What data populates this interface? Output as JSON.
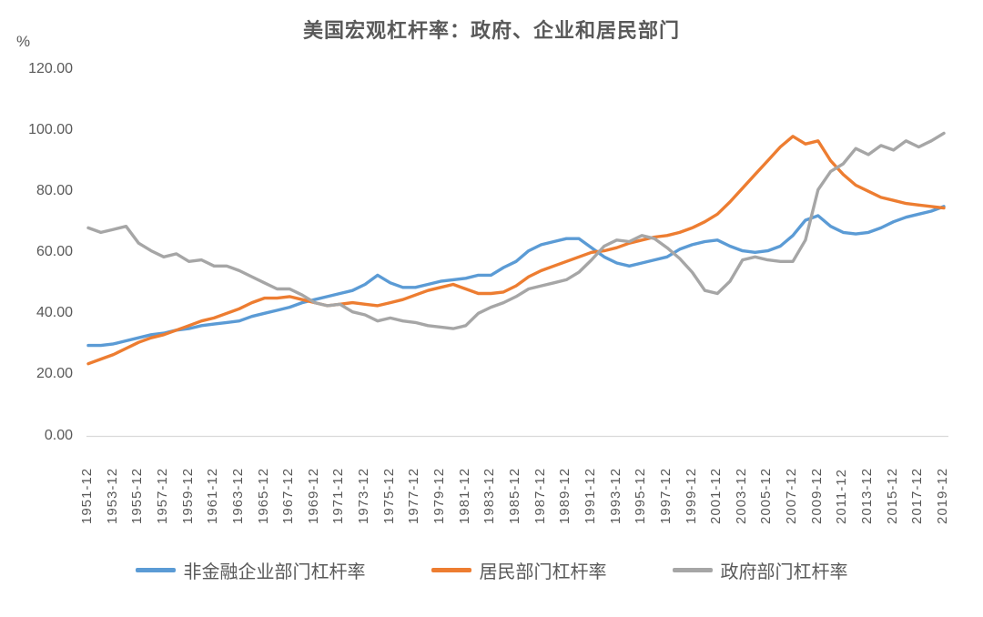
{
  "chart_data": {
    "type": "line",
    "title": "美国宏观杠杆率：政府、企业和居民部门",
    "unit_label": "%",
    "xlabel": "",
    "ylabel": "",
    "ylim": [
      0,
      120
    ],
    "grid": false,
    "legend_position": "bottom",
    "axis_color": "#D9D9D9",
    "text_color": "#595959",
    "y_ticks": [
      {
        "v": 120,
        "label": "120.00"
      },
      {
        "v": 100,
        "label": "100.00"
      },
      {
        "v": 80,
        "label": "80.00"
      },
      {
        "v": 60,
        "label": "60.00"
      },
      {
        "v": 40,
        "label": "40.00"
      },
      {
        "v": 20,
        "label": "20.00"
      },
      {
        "v": 0,
        "label": "0.00"
      }
    ],
    "x_tick_labels": [
      "1951-12",
      "1953-12",
      "1955-12",
      "1957-12",
      "1959-12",
      "1961-12",
      "1963-12",
      "1965-12",
      "1967-12",
      "1969-12",
      "1971-12",
      "1973-12",
      "1975-12",
      "1977-12",
      "1979-12",
      "1981-12",
      "1983-12",
      "1985-12",
      "1987-12",
      "1989-12",
      "1991-12",
      "1993-12",
      "1995-12",
      "1997-12",
      "1999-12",
      "2001-12",
      "2003-12",
      "2005-12",
      "2007-12",
      "2009-12",
      "2011-12",
      "2013-12",
      "2015-12",
      "2017-12",
      "2019-12"
    ],
    "x": [
      1951,
      1952,
      1953,
      1954,
      1955,
      1956,
      1957,
      1958,
      1959,
      1960,
      1961,
      1962,
      1963,
      1964,
      1965,
      1966,
      1967,
      1968,
      1969,
      1970,
      1971,
      1972,
      1973,
      1974,
      1975,
      1976,
      1977,
      1978,
      1979,
      1980,
      1981,
      1982,
      1983,
      1984,
      1985,
      1986,
      1987,
      1988,
      1989,
      1990,
      1991,
      1992,
      1993,
      1994,
      1995,
      1996,
      1997,
      1998,
      1999,
      2000,
      2001,
      2002,
      2003,
      2004,
      2005,
      2006,
      2007,
      2008,
      2009,
      2010,
      2011,
      2012,
      2013,
      2014,
      2015,
      2016,
      2017,
      2018,
      2019
    ],
    "series": [
      {
        "key": "corporate",
        "name": "非金融企业部门杠杆率",
        "color": "#5B9BD5",
        "values": [
          29.5,
          29.5,
          30.0,
          31.0,
          32.0,
          33.0,
          33.5,
          34.5,
          35.0,
          36.0,
          36.5,
          37.0,
          37.5,
          39.0,
          40.0,
          41.0,
          42.0,
          43.5,
          44.5,
          45.5,
          46.5,
          47.5,
          49.5,
          52.5,
          50.0,
          48.5,
          48.5,
          49.5,
          50.5,
          51.0,
          51.5,
          52.5,
          52.5,
          55.0,
          57.0,
          60.5,
          62.5,
          63.5,
          64.5,
          64.5,
          61.5,
          58.5,
          56.5,
          55.5,
          56.5,
          57.5,
          58.5,
          61.0,
          62.5,
          63.5,
          64.0,
          62.0,
          60.5,
          60.0,
          60.5,
          62.0,
          65.5,
          70.5,
          72.0,
          68.5,
          66.5,
          66.0,
          66.5,
          68.0,
          70.0,
          71.5,
          72.5,
          73.5,
          75.0
        ]
      },
      {
        "key": "household",
        "name": "居民部门杠杆率",
        "color": "#ED7D31",
        "values": [
          23.5,
          25.0,
          26.5,
          28.5,
          30.5,
          32.0,
          33.0,
          34.5,
          36.0,
          37.5,
          38.5,
          40.0,
          41.5,
          43.5,
          45.0,
          45.0,
          45.5,
          44.5,
          43.5,
          42.5,
          43.0,
          43.5,
          43.0,
          42.5,
          43.5,
          44.5,
          46.0,
          47.5,
          48.5,
          49.5,
          48.0,
          46.5,
          46.5,
          47.0,
          49.0,
          52.0,
          54.0,
          55.5,
          57.0,
          58.5,
          60.0,
          60.5,
          61.5,
          63.0,
          64.0,
          65.0,
          65.5,
          66.5,
          68.0,
          70.0,
          72.5,
          76.5,
          81.0,
          85.5,
          90.0,
          94.5,
          98.0,
          95.5,
          96.5,
          90.0,
          85.5,
          82.0,
          80.0,
          78.0,
          77.0,
          76.0,
          75.5,
          75.0,
          74.5
        ]
      },
      {
        "key": "government",
        "name": "政府部门杠杆率",
        "color": "#A6A6A6",
        "values": [
          68.0,
          66.5,
          67.5,
          68.5,
          63.0,
          60.5,
          58.5,
          59.5,
          57.0,
          57.5,
          55.5,
          55.5,
          54.0,
          52.0,
          50.0,
          48.0,
          48.0,
          46.0,
          43.5,
          42.5,
          43.0,
          40.5,
          39.5,
          37.5,
          38.5,
          37.5,
          37.0,
          36.0,
          35.5,
          35.0,
          36.0,
          40.0,
          42.0,
          43.5,
          45.5,
          48.0,
          49.0,
          50.0,
          51.0,
          53.5,
          57.5,
          62.0,
          64.0,
          63.5,
          65.5,
          64.5,
          61.5,
          58.0,
          53.5,
          47.5,
          46.5,
          50.5,
          57.5,
          58.5,
          57.5,
          57.0,
          57.0,
          64.0,
          80.5,
          86.5,
          89.0,
          94.0,
          92.0,
          95.0,
          93.5,
          96.5,
          94.5,
          96.5,
          99.0
        ]
      }
    ]
  }
}
